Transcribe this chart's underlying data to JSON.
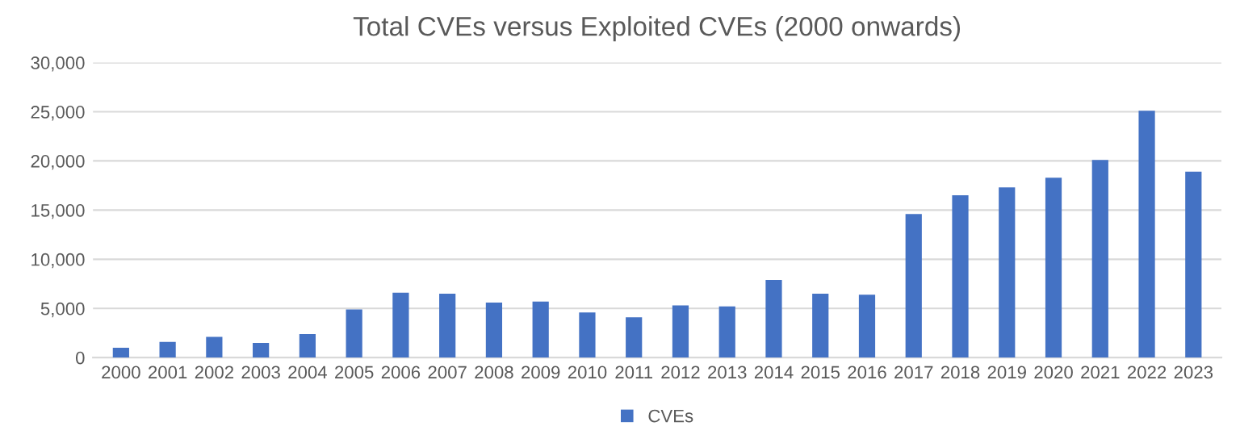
{
  "chart_data": {
    "type": "bar",
    "title": "Total CVEs versus Exploited CVEs (2000 onwards)",
    "categories": [
      "2000",
      "2001",
      "2002",
      "2003",
      "2004",
      "2005",
      "2006",
      "2007",
      "2008",
      "2009",
      "2010",
      "2011",
      "2012",
      "2013",
      "2014",
      "2015",
      "2016",
      "2017",
      "2018",
      "2019",
      "2020",
      "2021",
      "2022",
      "2023"
    ],
    "series": [
      {
        "name": "CVEs",
        "color": "#4472c4",
        "values": [
          1000,
          1600,
          2100,
          1500,
          2400,
          4900,
          6600,
          6500,
          5600,
          5700,
          4600,
          4100,
          5300,
          5200,
          7900,
          6500,
          6400,
          14600,
          16500,
          17300,
          18300,
          20100,
          25100,
          18900
        ]
      }
    ],
    "ylim": [
      0,
      30000
    ],
    "yticks": [
      {
        "value": 0,
        "label": "0"
      },
      {
        "value": 5000,
        "label": "5,000"
      },
      {
        "value": 10000,
        "label": "10,000"
      },
      {
        "value": 15000,
        "label": "15,000"
      },
      {
        "value": 20000,
        "label": "20,000"
      },
      {
        "value": 25000,
        "label": "25,000"
      },
      {
        "value": 30000,
        "label": "30,000"
      }
    ],
    "grid": "y",
    "legend": "bottom"
  }
}
